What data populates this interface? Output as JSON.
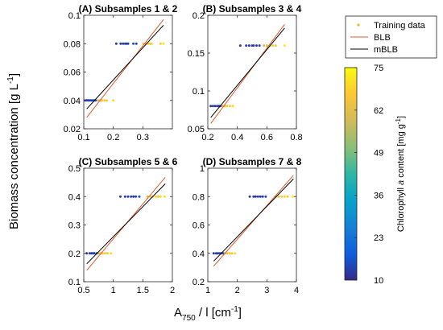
{
  "figure": {
    "ylabel": "Biomass concentration [g L",
    "ylabel_sup": "-1",
    "ylabel_end": "]",
    "xlabel_a": "A",
    "xlabel_sub": "750",
    "xlabel_mid": " / l [cm",
    "xlabel_sup": "-1",
    "xlabel_end": "]"
  },
  "legend": {
    "placement": "top-right",
    "entries": [
      {
        "label": "Training data",
        "kind": "marker",
        "color": "#f2b824"
      },
      {
        "label": "BLB",
        "kind": "line",
        "color": "#e05a2b"
      },
      {
        "label": "mBLB",
        "kind": "line",
        "color": "#000000"
      }
    ]
  },
  "colorbar": {
    "label_a": "Chlorophyll ",
    "label_italic": "a",
    "label_b": " content [mg g",
    "label_sup": "-1",
    "label_end": "]",
    "ticks": [
      10,
      23,
      36,
      49,
      62,
      75
    ],
    "range": [
      10,
      75
    ],
    "colormap": "parula"
  },
  "chart_data": [
    {
      "type": "scatter",
      "title": "(A) Subsamples 1 & 2",
      "xlim": [
        0.1,
        0.4
      ],
      "ylim": [
        0.02,
        0.1
      ],
      "xticks": [
        "0.1",
        "0.2",
        "0.3"
      ],
      "yticks": [
        "0.02",
        "0.04",
        "0.06",
        "0.08",
        "0.1"
      ],
      "xtick_values": [
        0.1,
        0.2,
        0.3
      ],
      "ytick_values": [
        0.02,
        0.04,
        0.06,
        0.08,
        0.1
      ],
      "points": [
        {
          "x": 0.105,
          "y": 0.04,
          "c": 12
        },
        {
          "x": 0.11,
          "y": 0.04,
          "c": 13
        },
        {
          "x": 0.115,
          "y": 0.04,
          "c": 12
        },
        {
          "x": 0.12,
          "y": 0.04,
          "c": 14
        },
        {
          "x": 0.125,
          "y": 0.04,
          "c": 13
        },
        {
          "x": 0.13,
          "y": 0.04,
          "c": 15
        },
        {
          "x": 0.135,
          "y": 0.04,
          "c": 14
        },
        {
          "x": 0.14,
          "y": 0.04,
          "c": 16
        },
        {
          "x": 0.148,
          "y": 0.04,
          "c": 58
        },
        {
          "x": 0.155,
          "y": 0.04,
          "c": 63
        },
        {
          "x": 0.162,
          "y": 0.04,
          "c": 66
        },
        {
          "x": 0.17,
          "y": 0.04,
          "c": 68
        },
        {
          "x": 0.178,
          "y": 0.04,
          "c": 66
        },
        {
          "x": 0.2,
          "y": 0.04,
          "c": 70
        },
        {
          "x": 0.21,
          "y": 0.08,
          "c": 12
        },
        {
          "x": 0.225,
          "y": 0.08,
          "c": 13
        },
        {
          "x": 0.233,
          "y": 0.08,
          "c": 12
        },
        {
          "x": 0.24,
          "y": 0.08,
          "c": 14
        },
        {
          "x": 0.245,
          "y": 0.08,
          "c": 12
        },
        {
          "x": 0.25,
          "y": 0.08,
          "c": 13
        },
        {
          "x": 0.268,
          "y": 0.08,
          "c": 15
        },
        {
          "x": 0.278,
          "y": 0.08,
          "c": 14
        },
        {
          "x": 0.302,
          "y": 0.08,
          "c": 63
        },
        {
          "x": 0.31,
          "y": 0.08,
          "c": 66
        },
        {
          "x": 0.318,
          "y": 0.08,
          "c": 68
        },
        {
          "x": 0.325,
          "y": 0.08,
          "c": 66
        },
        {
          "x": 0.33,
          "y": 0.08,
          "c": 70
        },
        {
          "x": 0.36,
          "y": 0.08,
          "c": 68
        },
        {
          "x": 0.37,
          "y": 0.08,
          "c": 72
        }
      ],
      "lines": [
        {
          "name": "BLB",
          "x": [
            0.11,
            0.37
          ],
          "y": [
            0.028,
            0.097
          ]
        },
        {
          "name": "mBLB",
          "x": [
            0.11,
            0.37
          ],
          "y": [
            0.034,
            0.093
          ]
        }
      ]
    },
    {
      "type": "scatter",
      "title": "(B) Subsamples 3 & 4",
      "xlim": [
        0.2,
        0.8
      ],
      "ylim": [
        0.05,
        0.2
      ],
      "xticks": [
        "0.2",
        "0.4",
        "0.6",
        "0.8"
      ],
      "yticks": [
        "0.05",
        "0.1",
        "0.15",
        "0.2"
      ],
      "xtick_values": [
        0.2,
        0.4,
        0.6,
        0.8
      ],
      "ytick_values": [
        0.05,
        0.1,
        0.15,
        0.2
      ],
      "points": [
        {
          "x": 0.22,
          "y": 0.08,
          "c": 12
        },
        {
          "x": 0.235,
          "y": 0.08,
          "c": 13
        },
        {
          "x": 0.25,
          "y": 0.08,
          "c": 12
        },
        {
          "x": 0.265,
          "y": 0.08,
          "c": 14
        },
        {
          "x": 0.275,
          "y": 0.08,
          "c": 13
        },
        {
          "x": 0.285,
          "y": 0.08,
          "c": 15
        },
        {
          "x": 0.3,
          "y": 0.08,
          "c": 58
        },
        {
          "x": 0.315,
          "y": 0.08,
          "c": 63
        },
        {
          "x": 0.33,
          "y": 0.08,
          "c": 66
        },
        {
          "x": 0.35,
          "y": 0.08,
          "c": 68
        },
        {
          "x": 0.37,
          "y": 0.08,
          "c": 70
        },
        {
          "x": 0.42,
          "y": 0.16,
          "c": 12
        },
        {
          "x": 0.46,
          "y": 0.16,
          "c": 13
        },
        {
          "x": 0.48,
          "y": 0.16,
          "c": 12
        },
        {
          "x": 0.5,
          "y": 0.16,
          "c": 14
        },
        {
          "x": 0.51,
          "y": 0.16,
          "c": 12
        },
        {
          "x": 0.53,
          "y": 0.16,
          "c": 13
        },
        {
          "x": 0.55,
          "y": 0.16,
          "c": 14
        },
        {
          "x": 0.58,
          "y": 0.16,
          "c": 60
        },
        {
          "x": 0.6,
          "y": 0.16,
          "c": 63
        },
        {
          "x": 0.62,
          "y": 0.16,
          "c": 66
        },
        {
          "x": 0.64,
          "y": 0.16,
          "c": 68
        },
        {
          "x": 0.66,
          "y": 0.16,
          "c": 66
        },
        {
          "x": 0.72,
          "y": 0.16,
          "c": 72
        }
      ],
      "lines": [
        {
          "name": "BLB",
          "x": [
            0.22,
            0.72
          ],
          "y": [
            0.057,
            0.188
          ]
        },
        {
          "name": "mBLB",
          "x": [
            0.22,
            0.72
          ],
          "y": [
            0.065,
            0.183
          ]
        }
      ]
    },
    {
      "type": "scatter",
      "title": "(C) Subsamples 5 & 6",
      "xlim": [
        0.5,
        2.0
      ],
      "ylim": [
        0.1,
        0.5
      ],
      "xticks": [
        "0.5",
        "1",
        "1.5",
        "2"
      ],
      "yticks": [
        "0.1",
        "0.2",
        "0.3",
        "0.4",
        "0.5"
      ],
      "xtick_values": [
        0.5,
        1.0,
        1.5,
        2.0
      ],
      "ytick_values": [
        0.1,
        0.2,
        0.3,
        0.4,
        0.5
      ],
      "points": [
        {
          "x": 0.55,
          "y": 0.2,
          "c": 12
        },
        {
          "x": 0.6,
          "y": 0.2,
          "c": 13
        },
        {
          "x": 0.63,
          "y": 0.2,
          "c": 12
        },
        {
          "x": 0.66,
          "y": 0.2,
          "c": 14
        },
        {
          "x": 0.68,
          "y": 0.2,
          "c": 13
        },
        {
          "x": 0.72,
          "y": 0.2,
          "c": 15
        },
        {
          "x": 0.75,
          "y": 0.2,
          "c": 58
        },
        {
          "x": 0.78,
          "y": 0.2,
          "c": 63
        },
        {
          "x": 0.82,
          "y": 0.2,
          "c": 66
        },
        {
          "x": 0.86,
          "y": 0.2,
          "c": 68
        },
        {
          "x": 0.9,
          "y": 0.2,
          "c": 66
        },
        {
          "x": 0.96,
          "y": 0.2,
          "c": 70
        },
        {
          "x": 1.12,
          "y": 0.4,
          "c": 12
        },
        {
          "x": 1.2,
          "y": 0.4,
          "c": 13
        },
        {
          "x": 1.25,
          "y": 0.4,
          "c": 12
        },
        {
          "x": 1.3,
          "y": 0.4,
          "c": 14
        },
        {
          "x": 1.34,
          "y": 0.4,
          "c": 12
        },
        {
          "x": 1.38,
          "y": 0.4,
          "c": 13
        },
        {
          "x": 1.44,
          "y": 0.4,
          "c": 15
        },
        {
          "x": 1.58,
          "y": 0.4,
          "c": 60
        },
        {
          "x": 1.63,
          "y": 0.4,
          "c": 63
        },
        {
          "x": 1.67,
          "y": 0.4,
          "c": 66
        },
        {
          "x": 1.72,
          "y": 0.4,
          "c": 68
        },
        {
          "x": 1.76,
          "y": 0.4,
          "c": 66
        },
        {
          "x": 1.8,
          "y": 0.4,
          "c": 70
        },
        {
          "x": 1.87,
          "y": 0.4,
          "c": 72
        }
      ],
      "lines": [
        {
          "name": "BLB",
          "x": [
            0.55,
            1.88
          ],
          "y": [
            0.14,
            0.468
          ]
        },
        {
          "name": "mBLB",
          "x": [
            0.55,
            1.88
          ],
          "y": [
            0.163,
            0.445
          ]
        }
      ]
    },
    {
      "type": "scatter",
      "title": "(D) Subsamples 7 & 8",
      "xlim": [
        1.0,
        4.0
      ],
      "ylim": [
        0.2,
        1.0
      ],
      "xticks": [
        "1",
        "2",
        "3",
        "4"
      ],
      "yticks": [
        "0.2",
        "0.4",
        "0.6",
        "0.8",
        "1"
      ],
      "xtick_values": [
        1,
        2,
        3,
        4
      ],
      "ytick_values": [
        0.2,
        0.4,
        0.6,
        0.8,
        1.0
      ],
      "points": [
        {
          "x": 1.2,
          "y": 0.4,
          "c": 12
        },
        {
          "x": 1.28,
          "y": 0.4,
          "c": 13
        },
        {
          "x": 1.34,
          "y": 0.4,
          "c": 12
        },
        {
          "x": 1.4,
          "y": 0.4,
          "c": 14
        },
        {
          "x": 1.45,
          "y": 0.4,
          "c": 13
        },
        {
          "x": 1.52,
          "y": 0.4,
          "c": 15
        },
        {
          "x": 1.58,
          "y": 0.4,
          "c": 58
        },
        {
          "x": 1.66,
          "y": 0.4,
          "c": 63
        },
        {
          "x": 1.74,
          "y": 0.4,
          "c": 66
        },
        {
          "x": 1.82,
          "y": 0.4,
          "c": 68
        },
        {
          "x": 1.92,
          "y": 0.4,
          "c": 70
        },
        {
          "x": 2.42,
          "y": 0.8,
          "c": 12
        },
        {
          "x": 2.55,
          "y": 0.8,
          "c": 13
        },
        {
          "x": 2.62,
          "y": 0.8,
          "c": 12
        },
        {
          "x": 2.7,
          "y": 0.8,
          "c": 14
        },
        {
          "x": 2.78,
          "y": 0.8,
          "c": 12
        },
        {
          "x": 2.86,
          "y": 0.8,
          "c": 13
        },
        {
          "x": 2.96,
          "y": 0.8,
          "c": 15
        },
        {
          "x": 3.3,
          "y": 0.8,
          "c": 60
        },
        {
          "x": 3.4,
          "y": 0.8,
          "c": 63
        },
        {
          "x": 3.5,
          "y": 0.8,
          "c": 66
        },
        {
          "x": 3.6,
          "y": 0.8,
          "c": 68
        },
        {
          "x": 3.7,
          "y": 0.8,
          "c": 66
        },
        {
          "x": 3.88,
          "y": 0.8,
          "c": 72
        }
      ],
      "lines": [
        {
          "name": "BLB",
          "x": [
            1.2,
            3.9
          ],
          "y": [
            0.31,
            0.95
          ]
        },
        {
          "name": "mBLB",
          "x": [
            1.2,
            3.9
          ],
          "y": [
            0.345,
            0.925
          ]
        }
      ]
    }
  ]
}
